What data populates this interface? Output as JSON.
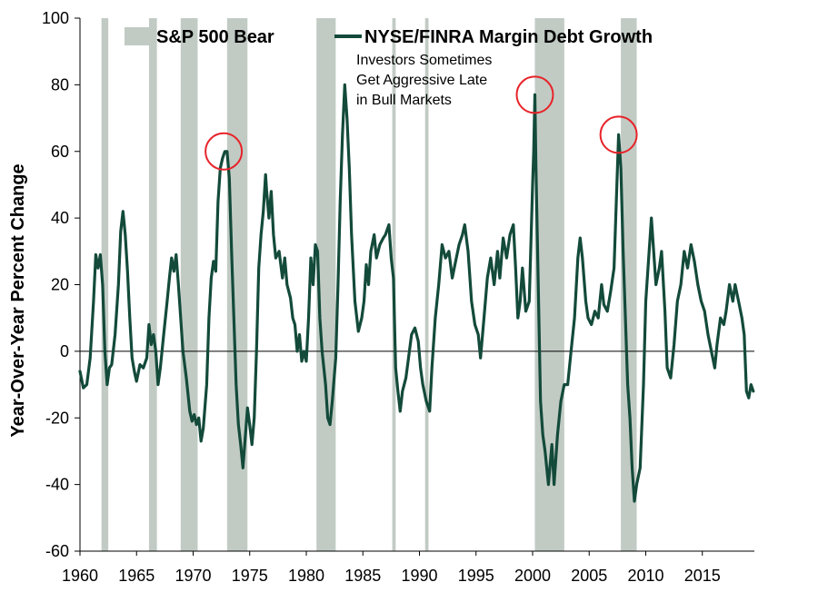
{
  "chart_data": {
    "type": "line",
    "title": "",
    "xlabel": "",
    "ylabel": "Year-Over-Year Percent Change",
    "xlim": [
      1960,
      2019.6
    ],
    "ylim": [
      -60,
      100
    ],
    "x_ticks": [
      1960,
      1965,
      1970,
      1975,
      1980,
      1985,
      1990,
      1995,
      2000,
      2005,
      2010,
      2015
    ],
    "y_ticks": [
      -60,
      -40,
      -20,
      0,
      20,
      40,
      60,
      80,
      100
    ],
    "grid": false,
    "zero_line": true,
    "legend_position": "top",
    "legend": {
      "bear_label": "S&P 500 Bear",
      "line_label": "NYSE/FINRA Margin Debt Growth"
    },
    "colors": {
      "line": "#134a3a",
      "bear": "#c1cbc4",
      "circle": "#e8232a"
    },
    "annotation": {
      "lines": [
        "Investors Sometimes",
        "Get Aggressive Late",
        "in Bull Markets"
      ]
    },
    "highlight_peaks": [
      {
        "x": 1972.7,
        "y": 60
      },
      {
        "x": 2000.2,
        "y": 77
      },
      {
        "x": 2007.6,
        "y": 65
      }
    ],
    "bear_markets": [
      {
        "start": 1961.9,
        "end": 1962.5
      },
      {
        "start": 1966.1,
        "end": 1966.8
      },
      {
        "start": 1968.9,
        "end": 1970.4
      },
      {
        "start": 1973.0,
        "end": 1974.8
      },
      {
        "start": 1980.9,
        "end": 1982.6
      },
      {
        "start": 1987.6,
        "end": 1987.9
      },
      {
        "start": 1990.5,
        "end": 1990.8
      },
      {
        "start": 2000.2,
        "end": 2002.8
      },
      {
        "start": 2007.8,
        "end": 2009.2
      }
    ],
    "series": [
      {
        "name": "NYSE/FINRA Margin Debt Growth",
        "points": [
          [
            1960.0,
            -6
          ],
          [
            1960.3,
            -11
          ],
          [
            1960.6,
            -10
          ],
          [
            1960.9,
            -2
          ],
          [
            1961.2,
            15
          ],
          [
            1961.4,
            29
          ],
          [
            1961.6,
            25
          ],
          [
            1961.8,
            29
          ],
          [
            1962.0,
            20
          ],
          [
            1962.2,
            0
          ],
          [
            1962.4,
            -10
          ],
          [
            1962.6,
            -5
          ],
          [
            1962.8,
            -4
          ],
          [
            1963.1,
            5
          ],
          [
            1963.4,
            20
          ],
          [
            1963.6,
            36
          ],
          [
            1963.8,
            42
          ],
          [
            1964.0,
            35
          ],
          [
            1964.2,
            24
          ],
          [
            1964.4,
            10
          ],
          [
            1964.6,
            -2
          ],
          [
            1964.8,
            -6
          ],
          [
            1965.0,
            -9
          ],
          [
            1965.3,
            -4
          ],
          [
            1965.6,
            -5
          ],
          [
            1965.9,
            -2
          ],
          [
            1966.1,
            8
          ],
          [
            1966.3,
            2
          ],
          [
            1966.5,
            5
          ],
          [
            1966.7,
            0
          ],
          [
            1966.9,
            -10
          ],
          [
            1967.1,
            -5
          ],
          [
            1967.4,
            5
          ],
          [
            1967.7,
            15
          ],
          [
            1967.9,
            22
          ],
          [
            1968.1,
            28
          ],
          [
            1968.3,
            24
          ],
          [
            1968.5,
            29
          ],
          [
            1968.7,
            20
          ],
          [
            1968.9,
            10
          ],
          [
            1969.1,
            0
          ],
          [
            1969.4,
            -8
          ],
          [
            1969.7,
            -18
          ],
          [
            1969.9,
            -21
          ],
          [
            1970.1,
            -19
          ],
          [
            1970.3,
            -22
          ],
          [
            1970.5,
            -20
          ],
          [
            1970.7,
            -27
          ],
          [
            1970.9,
            -23
          ],
          [
            1971.2,
            -10
          ],
          [
            1971.4,
            10
          ],
          [
            1971.6,
            22
          ],
          [
            1971.8,
            27
          ],
          [
            1972.0,
            24
          ],
          [
            1972.2,
            45
          ],
          [
            1972.4,
            55
          ],
          [
            1972.6,
            58
          ],
          [
            1972.8,
            60
          ],
          [
            1973.0,
            60
          ],
          [
            1973.2,
            52
          ],
          [
            1973.4,
            30
          ],
          [
            1973.6,
            10
          ],
          [
            1973.8,
            -10
          ],
          [
            1974.0,
            -22
          ],
          [
            1974.2,
            -28
          ],
          [
            1974.4,
            -35
          ],
          [
            1974.6,
            -26
          ],
          [
            1974.8,
            -17
          ],
          [
            1975.0,
            -22
          ],
          [
            1975.2,
            -28
          ],
          [
            1975.4,
            -20
          ],
          [
            1975.6,
            0
          ],
          [
            1975.8,
            25
          ],
          [
            1976.0,
            35
          ],
          [
            1976.2,
            42
          ],
          [
            1976.4,
            53
          ],
          [
            1976.5,
            48
          ],
          [
            1976.7,
            40
          ],
          [
            1976.9,
            48
          ],
          [
            1977.1,
            35
          ],
          [
            1977.3,
            28
          ],
          [
            1977.6,
            30
          ],
          [
            1977.9,
            22
          ],
          [
            1978.1,
            28
          ],
          [
            1978.3,
            20
          ],
          [
            1978.6,
            16
          ],
          [
            1978.8,
            10
          ],
          [
            1979.0,
            8
          ],
          [
            1979.2,
            0
          ],
          [
            1979.4,
            5
          ],
          [
            1979.6,
            -3
          ],
          [
            1979.8,
            0
          ],
          [
            1980.0,
            -3
          ],
          [
            1980.2,
            10
          ],
          [
            1980.4,
            28
          ],
          [
            1980.6,
            20
          ],
          [
            1980.8,
            32
          ],
          [
            1981.0,
            30
          ],
          [
            1981.2,
            10
          ],
          [
            1981.4,
            0
          ],
          [
            1981.7,
            -10
          ],
          [
            1981.9,
            -20
          ],
          [
            1982.1,
            -22
          ],
          [
            1982.3,
            -15
          ],
          [
            1982.6,
            -2
          ],
          [
            1982.8,
            20
          ],
          [
            1983.0,
            45
          ],
          [
            1983.2,
            65
          ],
          [
            1983.4,
            80
          ],
          [
            1983.6,
            70
          ],
          [
            1983.8,
            55
          ],
          [
            1984.0,
            35
          ],
          [
            1984.3,
            15
          ],
          [
            1984.6,
            6
          ],
          [
            1984.9,
            10
          ],
          [
            1985.1,
            15
          ],
          [
            1985.3,
            26
          ],
          [
            1985.5,
            20
          ],
          [
            1985.7,
            30
          ],
          [
            1986.0,
            35
          ],
          [
            1986.2,
            28
          ],
          [
            1986.5,
            32
          ],
          [
            1986.8,
            34
          ],
          [
            1987.0,
            35
          ],
          [
            1987.3,
            38
          ],
          [
            1987.5,
            28
          ],
          [
            1987.7,
            22
          ],
          [
            1987.9,
            -5
          ],
          [
            1988.1,
            -12
          ],
          [
            1988.3,
            -18
          ],
          [
            1988.5,
            -12
          ],
          [
            1988.8,
            -8
          ],
          [
            1989.0,
            -3
          ],
          [
            1989.3,
            5
          ],
          [
            1989.6,
            7
          ],
          [
            1989.9,
            3
          ],
          [
            1990.1,
            -5
          ],
          [
            1990.3,
            -10
          ],
          [
            1990.6,
            -15
          ],
          [
            1990.9,
            -18
          ],
          [
            1991.1,
            -5
          ],
          [
            1991.4,
            10
          ],
          [
            1991.7,
            20
          ],
          [
            1992.0,
            32
          ],
          [
            1992.3,
            28
          ],
          [
            1992.6,
            30
          ],
          [
            1992.9,
            22
          ],
          [
            1993.2,
            27
          ],
          [
            1993.5,
            32
          ],
          [
            1993.8,
            35
          ],
          [
            1994.0,
            38
          ],
          [
            1994.3,
            30
          ],
          [
            1994.6,
            15
          ],
          [
            1994.9,
            8
          ],
          [
            1995.2,
            5
          ],
          [
            1995.4,
            -2
          ],
          [
            1995.7,
            10
          ],
          [
            1996.0,
            22
          ],
          [
            1996.3,
            28
          ],
          [
            1996.6,
            20
          ],
          [
            1996.9,
            30
          ],
          [
            1997.1,
            22
          ],
          [
            1997.4,
            34
          ],
          [
            1997.7,
            28
          ],
          [
            1998.0,
            35
          ],
          [
            1998.3,
            38
          ],
          [
            1998.5,
            25
          ],
          [
            1998.7,
            10
          ],
          [
            1998.9,
            15
          ],
          [
            1999.1,
            25
          ],
          [
            1999.4,
            12
          ],
          [
            1999.7,
            15
          ],
          [
            2000.0,
            50
          ],
          [
            2000.1,
            60
          ],
          [
            2000.2,
            77
          ],
          [
            2000.3,
            55
          ],
          [
            2000.5,
            20
          ],
          [
            2000.7,
            -15
          ],
          [
            2000.9,
            -25
          ],
          [
            2001.1,
            -30
          ],
          [
            2001.4,
            -40
          ],
          [
            2001.7,
            -28
          ],
          [
            2001.9,
            -40
          ],
          [
            2002.2,
            -25
          ],
          [
            2002.5,
            -15
          ],
          [
            2002.8,
            -10
          ],
          [
            2003.1,
            -10
          ],
          [
            2003.4,
            0
          ],
          [
            2003.7,
            10
          ],
          [
            2004.0,
            28
          ],
          [
            2004.2,
            34
          ],
          [
            2004.4,
            28
          ],
          [
            2004.7,
            15
          ],
          [
            2004.9,
            10
          ],
          [
            2005.2,
            8
          ],
          [
            2005.5,
            12
          ],
          [
            2005.8,
            10
          ],
          [
            2006.1,
            20
          ],
          [
            2006.3,
            14
          ],
          [
            2006.6,
            12
          ],
          [
            2006.9,
            18
          ],
          [
            2007.2,
            25
          ],
          [
            2007.4,
            45
          ],
          [
            2007.6,
            65
          ],
          [
            2007.8,
            55
          ],
          [
            2008.0,
            30
          ],
          [
            2008.2,
            10
          ],
          [
            2008.4,
            -10
          ],
          [
            2008.6,
            -20
          ],
          [
            2008.8,
            -35
          ],
          [
            2009.0,
            -45
          ],
          [
            2009.2,
            -40
          ],
          [
            2009.5,
            -35
          ],
          [
            2009.8,
            -10
          ],
          [
            2010.0,
            15
          ],
          [
            2010.3,
            30
          ],
          [
            2010.5,
            40
          ],
          [
            2010.7,
            30
          ],
          [
            2010.9,
            20
          ],
          [
            2011.2,
            25
          ],
          [
            2011.4,
            30
          ],
          [
            2011.7,
            12
          ],
          [
            2011.9,
            -5
          ],
          [
            2012.2,
            -8
          ],
          [
            2012.5,
            2
          ],
          [
            2012.8,
            15
          ],
          [
            2013.1,
            20
          ],
          [
            2013.4,
            30
          ],
          [
            2013.7,
            25
          ],
          [
            2014.0,
            32
          ],
          [
            2014.3,
            27
          ],
          [
            2014.6,
            20
          ],
          [
            2014.9,
            15
          ],
          [
            2015.2,
            12
          ],
          [
            2015.5,
            5
          ],
          [
            2015.8,
            0
          ],
          [
            2016.1,
            -5
          ],
          [
            2016.3,
            2
          ],
          [
            2016.6,
            10
          ],
          [
            2016.9,
            8
          ],
          [
            2017.1,
            12
          ],
          [
            2017.4,
            20
          ],
          [
            2017.7,
            15
          ],
          [
            2017.9,
            20
          ],
          [
            2018.2,
            15
          ],
          [
            2018.5,
            10
          ],
          [
            2018.7,
            5
          ],
          [
            2018.9,
            -12
          ],
          [
            2019.1,
            -14
          ],
          [
            2019.3,
            -10
          ],
          [
            2019.5,
            -12
          ]
        ]
      }
    ]
  }
}
